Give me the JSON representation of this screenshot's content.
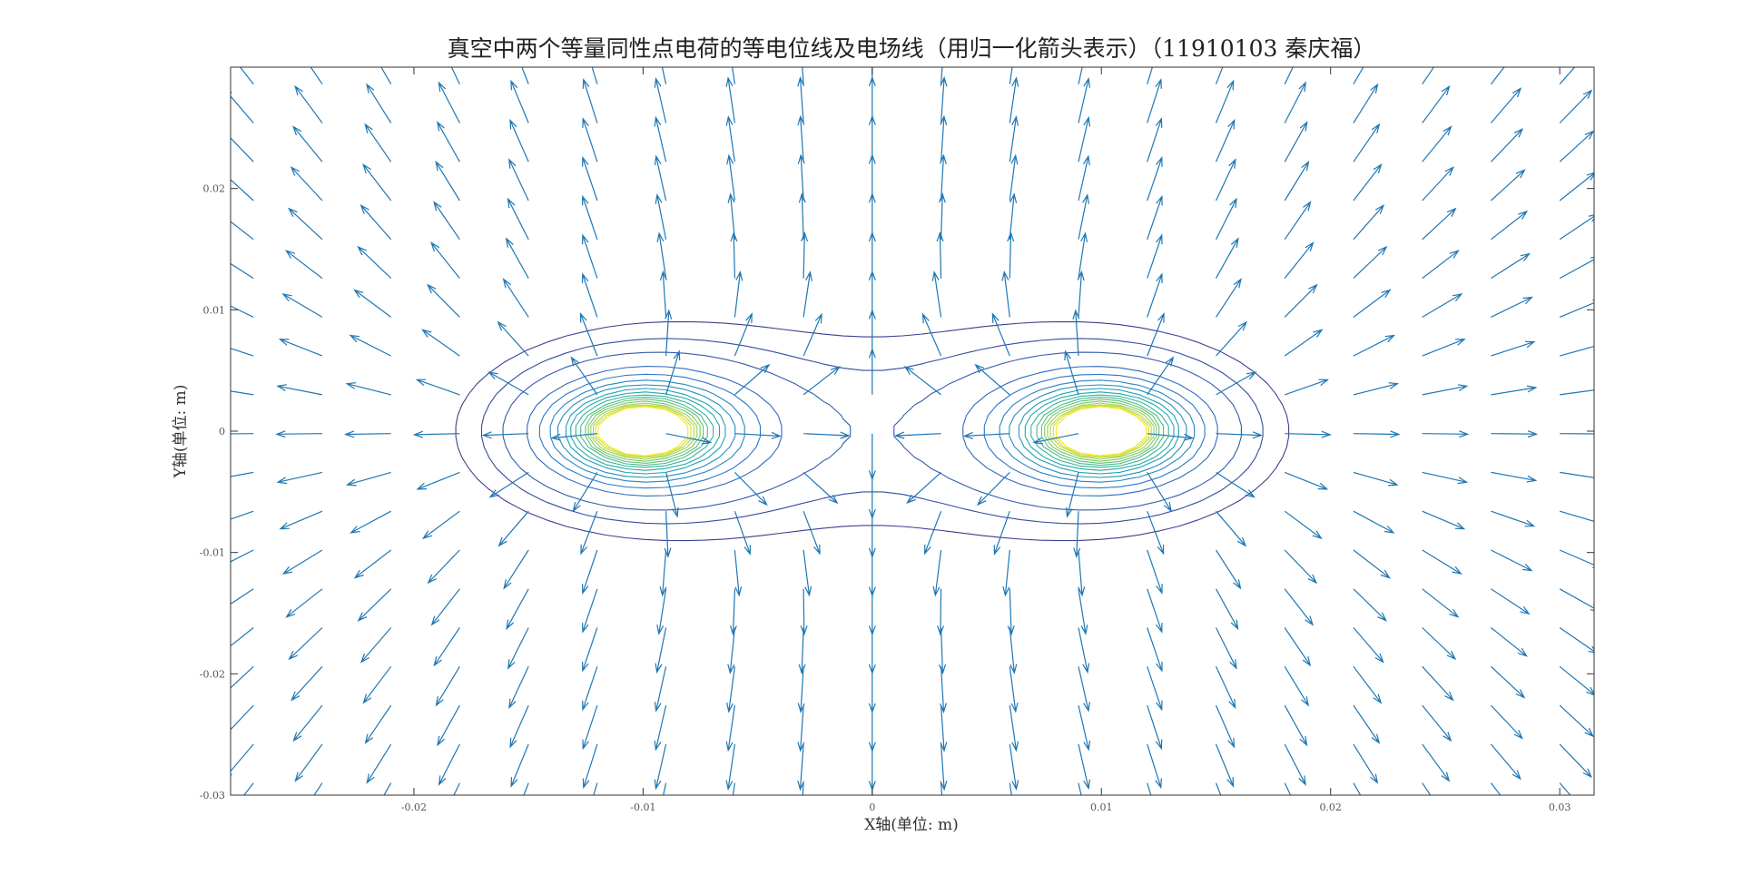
{
  "chart_data": {
    "type": "contour",
    "title": "真空中两个等量同性点电荷的等电位线及电场线（用归一化箭头表示）（11910103 秦庆福）",
    "xlabel": "X轴(单位: m)",
    "ylabel": "Y轴(单位: m)",
    "xlim": [
      -0.028,
      0.0315
    ],
    "ylim": [
      -0.03,
      0.03
    ],
    "x_ticks": [
      -0.02,
      -0.01,
      0,
      0.01,
      0.02,
      0.03
    ],
    "x_tick_labels": [
      "-0.02",
      "-0.01",
      "0",
      "0.01",
      "0.02",
      "0.03"
    ],
    "y_ticks": [
      -0.03,
      -0.02,
      -0.01,
      0,
      0.01,
      0.02
    ],
    "y_tick_labels": [
      "-0.03",
      "-0.02",
      "-0.01",
      "0",
      "0.01",
      "0.02"
    ],
    "charges": [
      {
        "x": -0.01,
        "y": 0,
        "q": 1
      },
      {
        "x": 0.01,
        "y": 0,
        "q": 1
      }
    ],
    "contour_levels": [
      1.58,
      1.79,
      2.02,
      2.37,
      2.63,
      2.89,
      3.13,
      3.38,
      3.62,
      3.88,
      4.13,
      4.38,
      4.63,
      4.88,
      5.13,
      5.38,
      5.63
    ],
    "arrow_grid": {
      "x_start": -0.027,
      "x_step": 0.003,
      "nx": 20,
      "y_start": -0.029,
      "y_step": 0.0032,
      "ny": 19
    },
    "grid": false,
    "colors": {
      "arrow": "#1f77b4",
      "contour_low": "#3b3f8f",
      "contour_high": "#f5e620",
      "axis": "#333333"
    }
  }
}
